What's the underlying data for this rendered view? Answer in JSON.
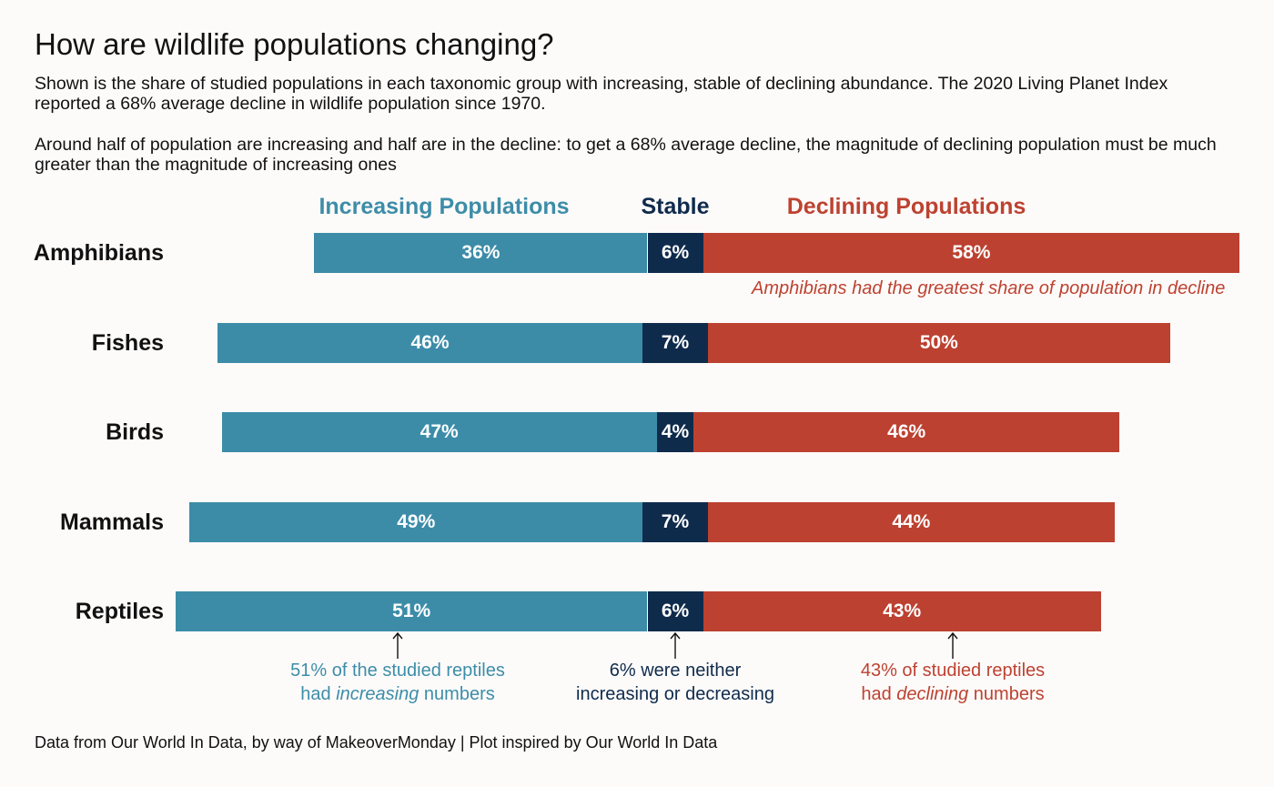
{
  "title": "How are wildlife populations changing?",
  "subtitle_1": "Shown is the share of studied populations in each taxonomic group with increasing, stable of declining abundance. The 2020 Living Planet Index reported a 68% average decline in wildlife population since 1970.",
  "subtitle_2": "Around half of population are increasing and half are in the decline: to get a 68% average decline, the magnitude of declining population must be much greater than the magnitude of increasing ones",
  "legend": {
    "increasing": "Increasing Populations",
    "stable": "Stable",
    "declining": "Declining Populations"
  },
  "colors": {
    "increasing": "#3c8ca8",
    "stable": "#0f2b4c",
    "declining": "#bc4130"
  },
  "chart_data": {
    "type": "bar",
    "orientation": "horizontal",
    "stacked": true,
    "categories": [
      "Amphibians",
      "Fishes",
      "Birds",
      "Mammals",
      "Reptiles"
    ],
    "series": [
      {
        "name": "Increasing Populations",
        "values": [
          36,
          46,
          47,
          49,
          51
        ],
        "labels": [
          "36%",
          "46%",
          "47%",
          "49%",
          "51%"
        ]
      },
      {
        "name": "Stable",
        "values": [
          6,
          7,
          4,
          7,
          6
        ],
        "labels": [
          "6%",
          "7%",
          "4%",
          "7%",
          "6%"
        ]
      },
      {
        "name": "Declining Populations",
        "values": [
          58,
          50,
          46,
          44,
          43
        ],
        "labels": [
          "58%",
          "50%",
          "46%",
          "44%",
          "43%"
        ]
      }
    ],
    "annotations": {
      "amphibians_note": "Amphibians had the greatest share of population in decline",
      "increasing_lines": [
        "51% of the studied reptiles",
        "had ",
        "increasing",
        " numbers"
      ],
      "stable_lines": [
        "6% were neither",
        "increasing or decreasing"
      ],
      "declining_lines": [
        "43% of studied reptiles",
        "had ",
        "declining",
        " numbers"
      ]
    }
  },
  "footer": "Data from Our World In Data, by way of MakeoverMonday | Plot inspired by Our World In Data"
}
